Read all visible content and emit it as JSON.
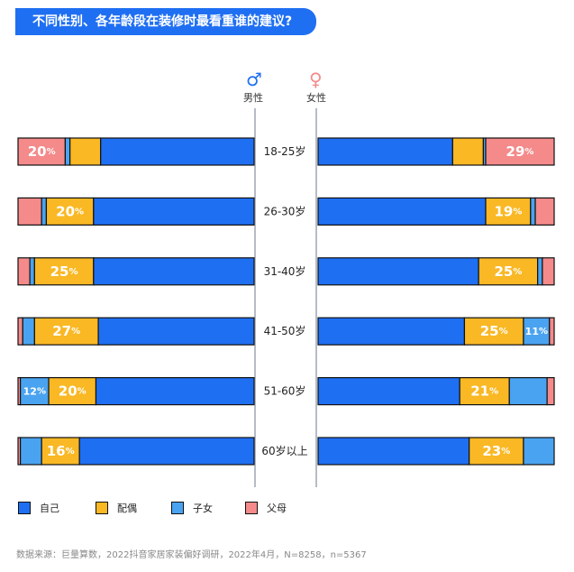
{
  "title": "不同性别、各年龄段在装修时最看重谁的建议?",
  "gender": {
    "male_symbol": "♂",
    "male_label": "男性",
    "female_symbol": "♀",
    "female_label": "女性"
  },
  "colors": {
    "self": "#1f6ff2",
    "spouse": "#f9b824",
    "children": "#4aa3f0",
    "parents": "#f48a8a",
    "male_symbol": "#1f6ff2",
    "female_symbol": "#f48a8a"
  },
  "legend": [
    {
      "key": "self",
      "label": "自己"
    },
    {
      "key": "spouse",
      "label": "配偶"
    },
    {
      "key": "children",
      "label": "子女"
    },
    {
      "key": "parents",
      "label": "父母"
    }
  ],
  "footer": "数据来源：巨量算数，2022抖音家居家装偏好调研，2022年4月，N=8258，n=5367",
  "chart_data": {
    "type": "bar",
    "stacked": true,
    "orientation": "horizontal-butterfly",
    "categories": [
      "18-25岁",
      "26-30岁",
      "31-40岁",
      "41-50岁",
      "51-60岁",
      "60岁以上"
    ],
    "series_order": [
      "parents",
      "children",
      "spouse",
      "self"
    ],
    "male": {
      "parents": [
        20,
        10,
        5,
        2,
        1,
        1
      ],
      "children": [
        2,
        2,
        2,
        5,
        12,
        9
      ],
      "spouse": [
        13,
        20,
        25,
        27,
        20,
        16
      ],
      "self": [
        65,
        68,
        68,
        66,
        67,
        74
      ]
    },
    "female": {
      "parents": [
        29,
        8,
        5,
        2,
        3,
        0
      ],
      "children": [
        1,
        2,
        2,
        11,
        16,
        13
      ],
      "spouse": [
        13,
        19,
        25,
        25,
        21,
        23
      ],
      "self": [
        57,
        71,
        68,
        62,
        60,
        64
      ]
    },
    "male_labels": {
      "parents": [
        "20%",
        "",
        "",
        "",
        "",
        ""
      ],
      "children": [
        "",
        "",
        "",
        "",
        "12%",
        ""
      ],
      "spouse": [
        "",
        "20%",
        "25%",
        "27%",
        "20%",
        "16%"
      ]
    },
    "female_labels": {
      "parents": [
        "29%",
        "",
        "",
        "",
        "",
        ""
      ],
      "children": [
        "",
        "",
        "",
        "11%",
        "",
        ""
      ],
      "spouse": [
        "",
        "19%",
        "25%",
        "25%",
        "21%",
        "23%"
      ]
    },
    "xlim": [
      0,
      100
    ]
  }
}
